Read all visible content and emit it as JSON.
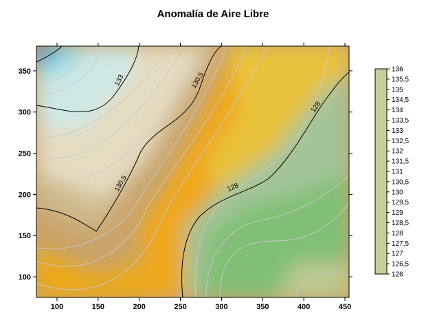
{
  "chart_data": {
    "type": "heatmap",
    "title": "Anomalía de Aire Libre",
    "xlabel": "",
    "ylabel": "",
    "xlim": [
      75,
      455
    ],
    "ylim": [
      75,
      380
    ],
    "x_ticks": [
      100,
      150,
      200,
      250,
      300,
      350,
      400,
      450
    ],
    "y_ticks": [
      100,
      150,
      200,
      250,
      300,
      350
    ],
    "color_scale": {
      "min": 126,
      "max": 136,
      "ticks": [
        "136",
        "135,5",
        "135",
        "134,5",
        "134",
        "133,5",
        "133",
        "132,5",
        "132",
        "131,5",
        "131",
        "130,5",
        "130",
        "129,5",
        "129",
        "128,5",
        "128",
        "127,5",
        "127",
        "126,5",
        "126"
      ],
      "stops": [
        {
          "value": 126,
          "color": "#c5cf9a"
        },
        {
          "value": 126.5,
          "color": "#9fcb8c"
        },
        {
          "value": 127,
          "color": "#7fbf76"
        },
        {
          "value": 127.5,
          "color": "#8fbf84"
        },
        {
          "value": 128,
          "color": "#b3c2a8"
        },
        {
          "value": 128.5,
          "color": "#e2cd4c"
        },
        {
          "value": 129,
          "color": "#f0c321"
        },
        {
          "value": 129.5,
          "color": "#f0a40a"
        },
        {
          "value": 130,
          "color": "#d8a53c"
        },
        {
          "value": 130.5,
          "color": "#b59a64"
        },
        {
          "value": 131,
          "color": "#dbc8a0"
        },
        {
          "value": 131.5,
          "color": "#ece0c4"
        },
        {
          "value": 132,
          "color": "#eee8d6"
        },
        {
          "value": 132.5,
          "color": "#dfeee8"
        },
        {
          "value": 133,
          "color": "#c8ecec"
        },
        {
          "value": 133.5,
          "color": "#a6e3ea"
        },
        {
          "value": 134,
          "color": "#7fd6e4"
        },
        {
          "value": 134.5,
          "color": "#5ec7e0"
        },
        {
          "value": 135,
          "color": "#3cb1de"
        },
        {
          "value": 135.5,
          "color": "#2a88da"
        },
        {
          "value": 136,
          "color": "#1454d4"
        }
      ]
    },
    "labeled_contours": [
      {
        "value": "133"
      },
      {
        "value": "130,5"
      },
      {
        "value": "130,5"
      },
      {
        "value": "128"
      },
      {
        "value": "128"
      }
    ]
  }
}
